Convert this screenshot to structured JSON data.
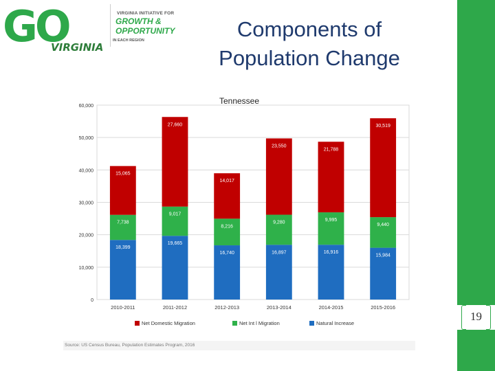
{
  "logo": {
    "main": "GO",
    "state": "VIRGINIA",
    "line1": "VIRGINIA INITIATIVE FOR",
    "line2": "GROWTH &",
    "line3": "OPPORTUNITY",
    "line4": "IN EACH REGION"
  },
  "slide": {
    "title": "Components of Population Change",
    "page_number": "19"
  },
  "chart_data": {
    "type": "bar",
    "stacked": true,
    "title": "Tennessee",
    "categories": [
      "2010-2011",
      "2011-2012",
      "2012-2013",
      "2013-2014",
      "2014-2015",
      "2015-2016"
    ],
    "series": [
      {
        "name": "Natural Increase",
        "color": "#1f6dc0",
        "values": [
          18399,
          19665,
          16740,
          16897,
          16916,
          15984
        ],
        "labels": [
          "18,399",
          "19,665",
          "16,740",
          "16,897",
          "16,916",
          "15,984"
        ]
      },
      {
        "name": "Net Int l Migration",
        "color": "#2fb14a",
        "values": [
          7738,
          9017,
          8216,
          9280,
          9995,
          9440
        ],
        "labels": [
          "7,738",
          "9,017",
          "8,216",
          "9,280",
          "9,995",
          "9,440"
        ]
      },
      {
        "name": "Net Domestic Migration",
        "color": "#c00000",
        "values": [
          15065,
          27660,
          14017,
          23550,
          21788,
          30519
        ],
        "labels": [
          "15,065",
          "27,660",
          "14,017",
          "23,550",
          "21,788",
          "30,519"
        ]
      }
    ],
    "ylim": [
      0,
      60000
    ],
    "yticks": [
      "0",
      "10,000",
      "20,000",
      "30,000",
      "40,000",
      "50,000",
      "60,000"
    ],
    "ylabel": "",
    "xlabel": "",
    "grid": true,
    "legend_order": [
      "Net Domestic Migration",
      "Net Int l Migration",
      "Natural Increase"
    ]
  },
  "source": "Source: US Census Bureau, Population Estimates Program, 2016"
}
